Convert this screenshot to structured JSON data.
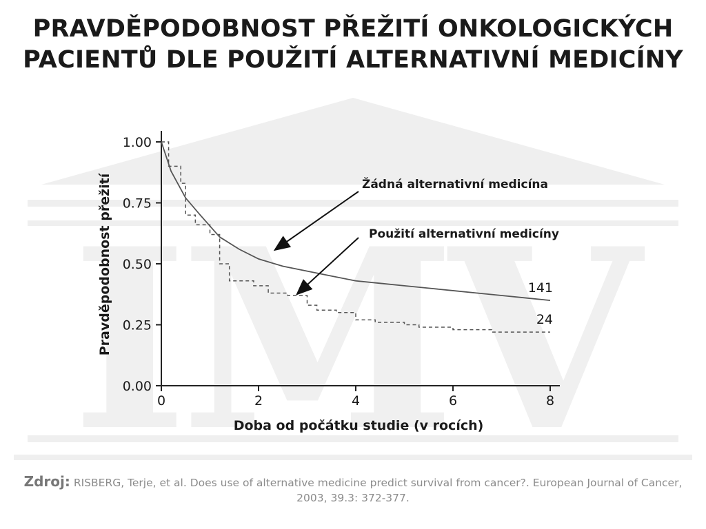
{
  "title": {
    "line1": "PRAVDĚPODOBNOST PŘEŽITÍ ONKOLOGICKÝCH",
    "line2": "PACIENTŮ DLE POUŽITÍ ALTERNATIVNÍ MEDICÍNY"
  },
  "watermark": {
    "text": "IMV",
    "color": "#ececec"
  },
  "colors": {
    "curve": "#555555",
    "axis": "#222222",
    "text": "#1a1a1a"
  },
  "chart_data": {
    "type": "line",
    "xlabel": "Doba od počátku studie (v rocích)",
    "ylabel": "Pravděpodobnost přežití",
    "xlim": [
      0,
      8
    ],
    "ylim": [
      0,
      1
    ],
    "x_ticks": [
      "0",
      "2",
      "4",
      "6",
      "8"
    ],
    "y_ticks": [
      "0.00",
      "0.25",
      "0.50",
      "0.75",
      "1.00"
    ],
    "series": [
      {
        "name": "Žádná alternativní medicína",
        "style": "solid",
        "end_label": "141",
        "x": [
          0,
          0.2,
          0.5,
          0.8,
          1.2,
          1.6,
          2.0,
          2.5,
          3.0,
          3.5,
          4.0,
          4.5,
          5.0,
          5.5,
          6.0,
          6.5,
          7.0,
          7.5,
          8.0
        ],
        "y": [
          1.0,
          0.88,
          0.77,
          0.7,
          0.61,
          0.56,
          0.52,
          0.49,
          0.47,
          0.45,
          0.43,
          0.42,
          0.41,
          0.4,
          0.39,
          0.38,
          0.37,
          0.36,
          0.35
        ]
      },
      {
        "name": "Použití alternativní medicíny",
        "style": "dashed",
        "end_label": "24",
        "x": [
          0,
          0.15,
          0.4,
          0.5,
          0.7,
          1.0,
          1.2,
          1.4,
          1.9,
          2.2,
          2.6,
          3.0,
          3.2,
          3.6,
          4.0,
          4.4,
          5.0,
          5.3,
          6.0,
          6.8,
          7.2,
          8.0
        ],
        "y": [
          1.0,
          0.9,
          0.83,
          0.7,
          0.66,
          0.62,
          0.5,
          0.43,
          0.41,
          0.38,
          0.37,
          0.33,
          0.31,
          0.3,
          0.27,
          0.26,
          0.25,
          0.24,
          0.23,
          0.22,
          0.22,
          0.22
        ]
      }
    ],
    "annotations": [
      {
        "text": "Žádná alternativní medicína",
        "points_to_series": 0
      },
      {
        "text": "Použití alternativní medicíny",
        "points_to_series": 1
      }
    ]
  },
  "source": {
    "label": "Zdroj:",
    "text": "RISBERG, Terje, et al. Does use of alternative medicine predict survival from cancer?. European Journal of Cancer, 2003, 39.3: 372-377."
  }
}
